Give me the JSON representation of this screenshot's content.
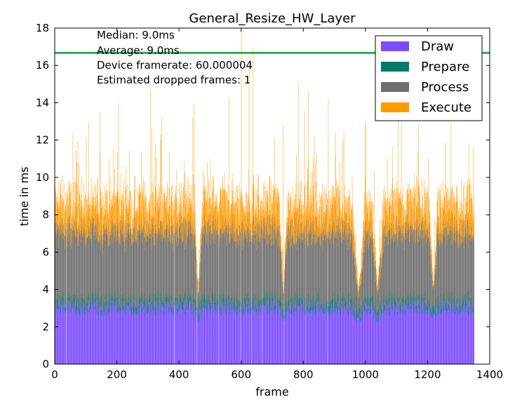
{
  "chart_data": {
    "type": "bar",
    "stacked": true,
    "title": "General_Resize_HW_Layer",
    "xlabel": "frame",
    "ylabel": "time in ms",
    "xlim": [
      0,
      1400
    ],
    "ylim": [
      0,
      18
    ],
    "xticks": [
      "0",
      "200",
      "400",
      "600",
      "800",
      "1000",
      "1200",
      "1400"
    ],
    "yticks": [
      "0",
      "2",
      "4",
      "6",
      "8",
      "10",
      "12",
      "14",
      "16",
      "18"
    ],
    "frame_count": 1350,
    "threshold_line": {
      "value": 16.67,
      "color": "#2cb24c"
    },
    "annotations": [
      "Median: 9.0ms",
      "Average: 9.0ms",
      "Device framerate: 60.000004",
      "Estimated dropped frames: 1"
    ],
    "legend": {
      "placement": "top-right"
    },
    "gap_frames": [
      36,
      385,
      456,
      527,
      597,
      632,
      667,
      737,
      807,
      877
    ],
    "dip_frames": [
      [
        448,
        475,
        2.0
      ],
      [
        722,
        748,
        2.2
      ],
      [
        955,
        1000,
        1.8
      ],
      [
        1020,
        1058,
        2.3
      ],
      [
        1205,
        1232,
        1.8
      ]
    ],
    "peak_frames": [
      [
        145,
        13.5
      ],
      [
        205,
        14.0
      ],
      [
        308,
        14.7
      ],
      [
        448,
        13.9
      ],
      [
        560,
        14.3
      ],
      [
        600,
        17.9
      ],
      [
        625,
        16.0
      ],
      [
        638,
        17.0
      ],
      [
        735,
        12.8
      ],
      [
        785,
        15.1
      ],
      [
        805,
        13.6
      ],
      [
        815,
        14.6
      ],
      [
        880,
        14.2
      ],
      [
        930,
        12.5
      ],
      [
        1000,
        12.9
      ],
      [
        1105,
        13.3
      ],
      [
        1115,
        13.0
      ],
      [
        1170,
        12.8
      ],
      [
        1275,
        12.9
      ]
    ],
    "series": [
      {
        "name": "Draw",
        "color": "#7b4bff",
        "mean": 3.0,
        "spread": 0.45
      },
      {
        "name": "Prepare",
        "color": "#00796b",
        "mean": 0.3,
        "spread": 0.35
      },
      {
        "name": "Process",
        "color": "#6e6e6e",
        "mean": 3.7,
        "spread": 0.6
      },
      {
        "name": "Execute",
        "color": "#ff9a00",
        "mean": 1.6,
        "spread": 1.2
      }
    ]
  }
}
